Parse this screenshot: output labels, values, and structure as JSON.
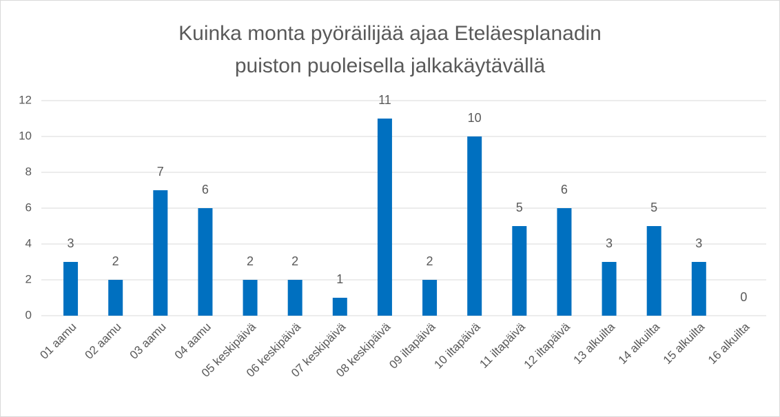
{
  "chart_data": {
    "type": "bar",
    "title": [
      "Kuinka monta pyöräilijää ajaa Eteläesplanadin",
      "puiston puoleisella jalkakäytävällä"
    ],
    "categories": [
      "01 aamu",
      "02 aamu",
      "03 aamu",
      "04 aamu",
      "05 keskipäivä",
      "06 keskipäivä",
      "07 keskipäivä",
      "08 keskipäivä",
      "09 iltapäivä",
      "10 iltapäivä",
      "11 iltapäivä",
      "12 iltapäivä",
      "13 alkuilta",
      "14 alkuilta",
      "15 alkuilta",
      "16 alkuilta"
    ],
    "values": [
      3,
      2,
      7,
      6,
      2,
      2,
      1,
      11,
      2,
      10,
      5,
      6,
      3,
      5,
      3,
      0
    ],
    "color": "#0070c0",
    "ylim": [
      0,
      12
    ],
    "yticks": [
      0,
      2,
      4,
      6,
      8,
      10,
      12
    ],
    "grid": true
  }
}
